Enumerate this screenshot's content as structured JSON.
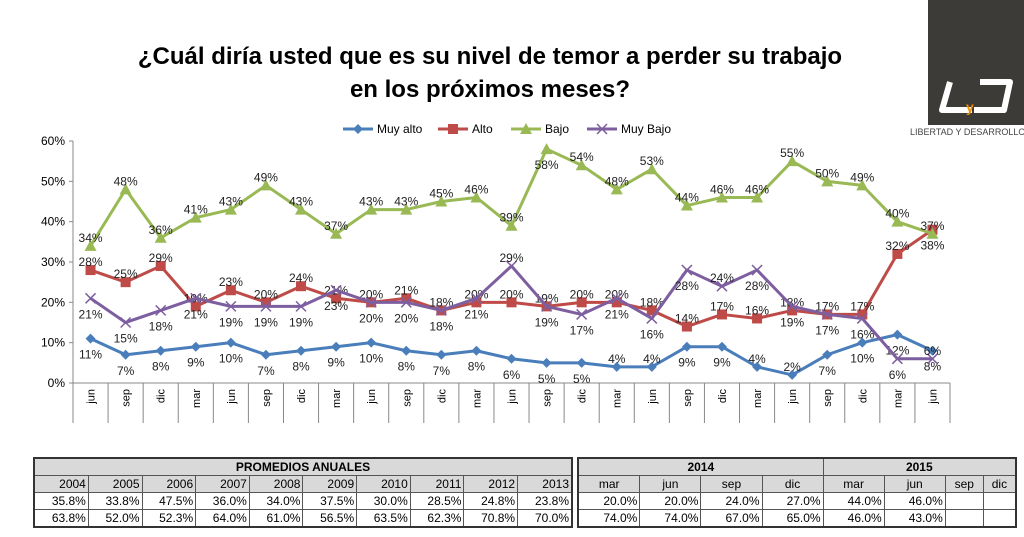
{
  "title_line1": "¿Cuál diría usted que es su nivel de temor a perder su trabajo",
  "title_line2": "en los próximos meses?",
  "logo": {
    "text": "LIBERTAD Y DESARROLLO",
    "mark": "LyD"
  },
  "chart_data": {
    "type": "line",
    "categories": [
      "jun",
      "sep",
      "dic",
      "mar",
      "jun",
      "sep",
      "dic",
      "mar",
      "jun",
      "sep",
      "dic",
      "mar",
      "jun",
      "sep",
      "dic",
      "mar",
      "jun",
      "sep",
      "dic",
      "mar",
      "jun",
      "sep",
      "dic",
      "mar",
      "jun"
    ],
    "ylim": [
      0,
      60
    ],
    "yticks": [
      "0%",
      "10%",
      "20%",
      "30%",
      "40%",
      "50%",
      "60%"
    ],
    "legend_position": "top",
    "grid": false,
    "series": [
      {
        "name": "Muy alto",
        "color": "#4a7ebb",
        "marker": "diamond",
        "values": [
          11,
          7,
          8,
          9,
          10,
          7,
          8,
          9,
          10,
          8,
          7,
          8,
          6,
          5,
          5,
          4,
          4,
          9,
          9,
          4,
          2,
          7,
          10,
          12,
          8
        ]
      },
      {
        "name": "Alto",
        "color": "#be4b48",
        "marker": "square",
        "values": [
          28,
          25,
          29,
          19,
          23,
          20,
          24,
          21,
          20,
          21,
          18,
          20,
          20,
          19,
          20,
          20,
          18,
          14,
          17,
          16,
          18,
          17,
          17,
          32,
          38
        ]
      },
      {
        "name": "Bajo",
        "color": "#98b954",
        "marker": "triangle",
        "values": [
          34,
          48,
          36,
          41,
          43,
          49,
          43,
          37,
          43,
          43,
          45,
          46,
          39,
          58,
          54,
          48,
          53,
          44,
          46,
          46,
          55,
          50,
          49,
          40,
          37
        ]
      },
      {
        "name": "Muy Bajo",
        "color": "#7d5fa0",
        "marker": "x",
        "values": [
          21,
          15,
          18,
          21,
          19,
          19,
          19,
          23,
          20,
          20,
          18,
          21,
          29,
          19,
          17,
          21,
          16,
          28,
          24,
          28,
          19,
          17,
          16,
          6,
          6
        ]
      }
    ]
  },
  "table_annual": {
    "header": "PROMEDIOS ANUALES",
    "years": [
      "2004",
      "2005",
      "2006",
      "2007",
      "2008",
      "2009",
      "2010",
      "2011",
      "2012",
      "2013"
    ],
    "rows": [
      [
        "35.8%",
        "33.8%",
        "47.5%",
        "36.0%",
        "34.0%",
        "37.5%",
        "30.0%",
        "28.5%",
        "24.8%",
        "23.8%"
      ],
      [
        "63.8%",
        "52.0%",
        "52.3%",
        "64.0%",
        "61.0%",
        "56.5%",
        "63.5%",
        "62.3%",
        "70.8%",
        "70.0%"
      ]
    ]
  },
  "table_recent": {
    "years": [
      "2014",
      "2015"
    ],
    "months": [
      "mar",
      "jun",
      "sep",
      "dic",
      "mar",
      "jun",
      "sep",
      "dic"
    ],
    "rows": [
      [
        "20.0%",
        "20.0%",
        "24.0%",
        "27.0%",
        "44.0%",
        "46.0%",
        "",
        ""
      ],
      [
        "74.0%",
        "74.0%",
        "67.0%",
        "65.0%",
        "46.0%",
        "43.0%",
        "",
        ""
      ]
    ]
  }
}
